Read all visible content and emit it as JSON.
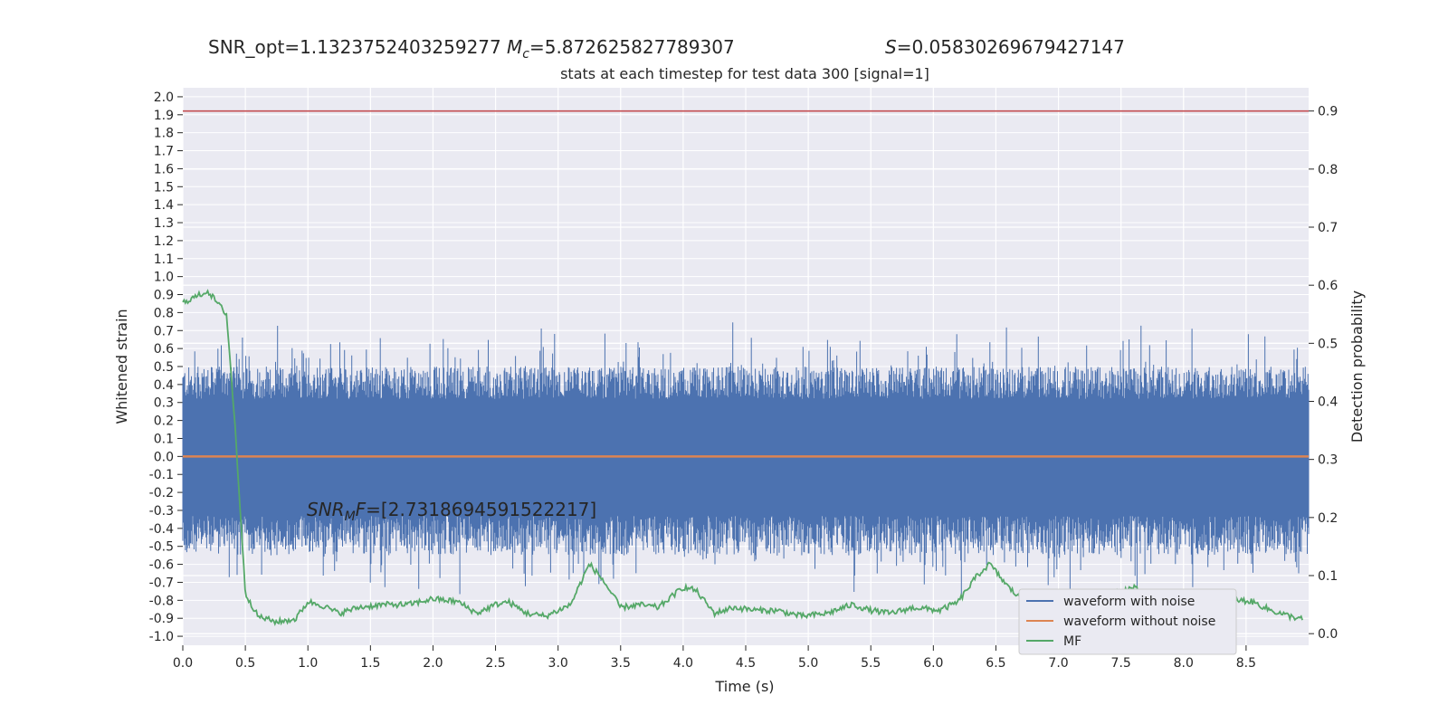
{
  "header": {
    "snr_opt": "SNR_opt=1.1323752403259277",
    "mc_sym": "M",
    "mc_sub": "c",
    "mc_value": "=5.872625827789307",
    "s_sym": "S",
    "s_value": "=0.05830269679427147"
  },
  "annotation": {
    "snr_sym": "SNR",
    "snr_sub": "M",
    "snr_sym2": "F",
    "snr_value": "=[2.7318694591522217]"
  },
  "chart_data": {
    "type": "line",
    "title": "stats at each timestep for test data 300 [signal=1]",
    "xlabel": "Time (s)",
    "ylabel_left": "Whitened strain",
    "ylabel_right": "Detection probability",
    "xlim": [
      0.0,
      9.0
    ],
    "ylim_left": [
      -1.05,
      2.05
    ],
    "ylim_right": [
      -0.02,
      0.94
    ],
    "x_ticks": [
      "0.0",
      "0.5",
      "1.0",
      "1.5",
      "2.0",
      "2.5",
      "3.0",
      "3.5",
      "4.0",
      "4.5",
      "5.0",
      "5.5",
      "6.0",
      "6.5",
      "7.0",
      "7.5",
      "8.0",
      "8.5"
    ],
    "y_left_ticks": [
      "2.0",
      "1.9",
      "1.8",
      "1.7",
      "1.6",
      "1.5",
      "1.4",
      "1.3",
      "1.2",
      "1.1",
      "1.0",
      "0.9",
      "0.8",
      "0.7",
      "0.6",
      "0.5",
      "0.4",
      "0.3",
      "0.2",
      "0.1",
      "0.0",
      "-0.1",
      "-0.2",
      "-0.3",
      "-0.4",
      "-0.5",
      "-0.6",
      "-0.7",
      "-0.8",
      "-0.9",
      "-1.0"
    ],
    "y_right_ticks": [
      "0.9",
      "0.8",
      "0.7",
      "0.6",
      "0.5",
      "0.4",
      "0.3",
      "0.2",
      "0.1",
      "0.0"
    ],
    "threshold": 0.9,
    "legend_position": "lower-right",
    "legend": [
      "waveform with noise",
      "waveform without noise",
      "MF"
    ],
    "colors": {
      "noise": "#4c72b0",
      "clean": "#dd8452",
      "mf": "#55a868",
      "threshold": "#c44e52",
      "background": "#eaeaf2",
      "grid": "#ffffff"
    },
    "series": [
      {
        "name": "MF",
        "axis": "right",
        "x": [
          0.0,
          0.2,
          0.35,
          0.42,
          0.5,
          0.6,
          0.75,
          0.9,
          1.0,
          1.1,
          1.25,
          1.4,
          1.6,
          1.8,
          2.0,
          2.2,
          2.35,
          2.5,
          2.6,
          2.75,
          2.9,
          3.1,
          3.25,
          3.35,
          3.5,
          3.65,
          3.8,
          4.0,
          4.1,
          4.25,
          4.4,
          4.6,
          4.75,
          4.95,
          5.15,
          5.35,
          5.5,
          5.65,
          5.85,
          6.05,
          6.2,
          6.35,
          6.45,
          6.6,
          6.8,
          7.05,
          7.25,
          7.45,
          7.6,
          7.75,
          7.95,
          8.15,
          8.35,
          8.55,
          8.7,
          8.85,
          8.95
        ],
        "values": [
          0.57,
          0.59,
          0.55,
          0.35,
          0.07,
          0.03,
          0.02,
          0.025,
          0.055,
          0.05,
          0.035,
          0.045,
          0.05,
          0.05,
          0.06,
          0.055,
          0.035,
          0.05,
          0.055,
          0.035,
          0.03,
          0.05,
          0.12,
          0.095,
          0.045,
          0.05,
          0.045,
          0.08,
          0.075,
          0.035,
          0.045,
          0.04,
          0.04,
          0.03,
          0.035,
          0.05,
          0.04,
          0.035,
          0.045,
          0.04,
          0.055,
          0.1,
          0.12,
          0.08,
          0.04,
          0.035,
          0.05,
          0.07,
          0.08,
          0.06,
          0.04,
          0.045,
          0.06,
          0.055,
          0.04,
          0.03,
          0.025
        ]
      },
      {
        "name": "waveform without noise",
        "axis": "left",
        "x": [
          0.0,
          8.9,
          9.0
        ],
        "values": [
          0.0,
          0.0,
          0.0
        ]
      },
      {
        "name": "waveform with noise",
        "axis": "left",
        "x": [
          0.0,
          9.0
        ],
        "values": [
          0.0,
          0.0
        ],
        "envelope": [
          -0.75,
          0.7
        ]
      }
    ]
  }
}
